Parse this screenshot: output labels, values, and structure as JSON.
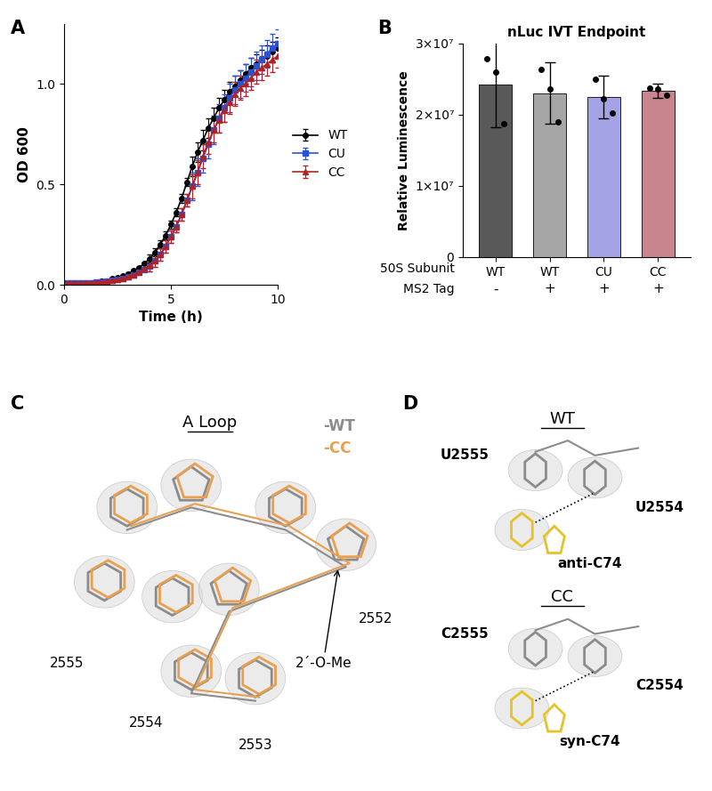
{
  "chart_data": [
    {
      "panel": "A",
      "type": "line",
      "xlabel": "Time (h)",
      "ylabel": "OD 600",
      "x": [
        0,
        0.25,
        0.5,
        0.75,
        1,
        1.25,
        1.5,
        1.75,
        2,
        2.25,
        2.5,
        2.75,
        3,
        3.25,
        3.5,
        3.75,
        4,
        4.25,
        4.5,
        4.75,
        5,
        5.25,
        5.5,
        5.75,
        6,
        6.25,
        6.5,
        6.75,
        7,
        7.25,
        7.5,
        7.75,
        8,
        8.25,
        8.5,
        8.75,
        9,
        9.25,
        9.5,
        9.75,
        10
      ],
      "xlim": [
        0,
        10
      ],
      "xticks": [
        0,
        5,
        10
      ],
      "ylim": [
        0,
        1.3
      ],
      "yticks": [
        {
          "value": 0,
          "label": "0.0"
        },
        {
          "value": 0.5,
          "label": "0.5"
        },
        {
          "value": 1.0,
          "label": "1.0"
        }
      ],
      "legend": "right",
      "series": [
        {
          "name": "WT",
          "color": "#000000",
          "marker": "circle",
          "values": [
            0.01,
            0.01,
            0.01,
            0.01,
            0.01,
            0.01,
            0.015,
            0.02,
            0.02,
            0.03,
            0.035,
            0.045,
            0.055,
            0.07,
            0.085,
            0.105,
            0.13,
            0.16,
            0.2,
            0.245,
            0.3,
            0.36,
            0.43,
            0.51,
            0.59,
            0.66,
            0.72,
            0.78,
            0.83,
            0.88,
            0.92,
            0.96,
            0.99,
            1.02,
            1.05,
            1.08,
            1.1,
            1.12,
            1.14,
            1.16,
            1.18
          ],
          "errors": [
            0.005,
            0.005,
            0.005,
            0.005,
            0.005,
            0.005,
            0.005,
            0.005,
            0.005,
            0.005,
            0.005,
            0.005,
            0.005,
            0.005,
            0.005,
            0.005,
            0.02,
            0.02,
            0.02,
            0.02,
            0.02,
            0.02,
            0.02,
            0.02,
            0.05,
            0.05,
            0.05,
            0.05,
            0.05,
            0.05,
            0.05,
            0.05,
            0.05,
            0.05,
            0.05,
            0.05,
            0.05,
            0.05,
            0.05,
            0.05,
            0.05
          ]
        },
        {
          "name": "CU",
          "color": "#2a52d9",
          "marker": "square",
          "values": [
            0.01,
            0.01,
            0.01,
            0.01,
            0.01,
            0.01,
            0.012,
            0.015,
            0.018,
            0.022,
            0.027,
            0.033,
            0.04,
            0.05,
            0.062,
            0.077,
            0.095,
            0.12,
            0.15,
            0.19,
            0.24,
            0.29,
            0.35,
            0.42,
            0.49,
            0.56,
            0.63,
            0.7,
            0.77,
            0.83,
            0.88,
            0.93,
            0.97,
            1.0,
            1.03,
            1.06,
            1.09,
            1.12,
            1.15,
            1.18,
            1.2
          ],
          "errors": [
            0.005,
            0.005,
            0.005,
            0.005,
            0.005,
            0.005,
            0.005,
            0.005,
            0.005,
            0.005,
            0.005,
            0.005,
            0.005,
            0.005,
            0.005,
            0.005,
            0.03,
            0.03,
            0.03,
            0.03,
            0.03,
            0.03,
            0.03,
            0.03,
            0.07,
            0.07,
            0.07,
            0.07,
            0.07,
            0.07,
            0.07,
            0.07,
            0.07,
            0.07,
            0.07,
            0.07,
            0.07,
            0.07,
            0.07,
            0.07,
            0.07
          ]
        },
        {
          "name": "CC",
          "color": "#b22222",
          "marker": "triangle",
          "values": [
            0.01,
            0.01,
            0.01,
            0.01,
            0.01,
            0.01,
            0.012,
            0.015,
            0.018,
            0.022,
            0.027,
            0.033,
            0.041,
            0.051,
            0.063,
            0.078,
            0.096,
            0.12,
            0.15,
            0.19,
            0.24,
            0.29,
            0.35,
            0.42,
            0.49,
            0.56,
            0.64,
            0.71,
            0.77,
            0.82,
            0.87,
            0.91,
            0.95,
            0.98,
            1.0,
            1.03,
            1.06,
            1.08,
            1.1,
            1.12,
            1.14
          ],
          "errors": [
            0.005,
            0.005,
            0.005,
            0.005,
            0.005,
            0.005,
            0.005,
            0.005,
            0.005,
            0.005,
            0.005,
            0.005,
            0.005,
            0.005,
            0.005,
            0.005,
            0.03,
            0.03,
            0.03,
            0.03,
            0.03,
            0.03,
            0.03,
            0.03,
            0.06,
            0.06,
            0.06,
            0.06,
            0.06,
            0.06,
            0.06,
            0.06,
            0.06,
            0.06,
            0.06,
            0.06,
            0.06,
            0.06,
            0.06,
            0.06,
            0.06
          ]
        }
      ]
    },
    {
      "panel": "B",
      "type": "bar",
      "title": "nLuc IVT Endpoint",
      "ylabel": "Relative Luminescence",
      "categories": [
        "WT",
        "WT",
        "CU",
        "CC"
      ],
      "row_label": "50S Subunit",
      "tag_label": "MS2 Tag",
      "tags": [
        "-",
        "+",
        "+",
        "+"
      ],
      "values": [
        24200000,
        23000000,
        22500000,
        23400000
      ],
      "errors": [
        6000000,
        4300000,
        3000000,
        1000000
      ],
      "points": [
        [
          27800000,
          26000000,
          18800000
        ],
        [
          26300000,
          23600000,
          19000000
        ],
        [
          25000000,
          22200000,
          20300000
        ],
        [
          23800000,
          23600000,
          22800000
        ]
      ],
      "colors": [
        "#595959",
        "#a6a6a6",
        "#a3a3e6",
        "#c9858d"
      ],
      "ylim": [
        0,
        30000000
      ],
      "yticks": [
        {
          "value": 0,
          "label": "0"
        },
        {
          "value": 10000000,
          "label": "1×10⁷"
        },
        {
          "value": 20000000,
          "label": "2×10⁷"
        },
        {
          "value": 30000000,
          "label": "3×10⁷"
        }
      ]
    }
  ],
  "structures": [
    {
      "panel": "C",
      "title": "A Loop",
      "legend": [
        {
          "name": "-WT",
          "color": "#8c8c8c"
        },
        {
          "name": "-CC",
          "color": "#e8a050"
        }
      ],
      "residues": [
        "2555",
        "2554",
        "2553",
        "2552"
      ],
      "annotation": "2´-O-Me"
    },
    {
      "panel": "D",
      "views": [
        {
          "title": "WT",
          "labels": [
            "U2555",
            "U2554",
            "anti-C74"
          ]
        },
        {
          "title": "CC",
          "labels": [
            "C2555",
            "C2554",
            "syn-C74"
          ]
        }
      ]
    }
  ]
}
